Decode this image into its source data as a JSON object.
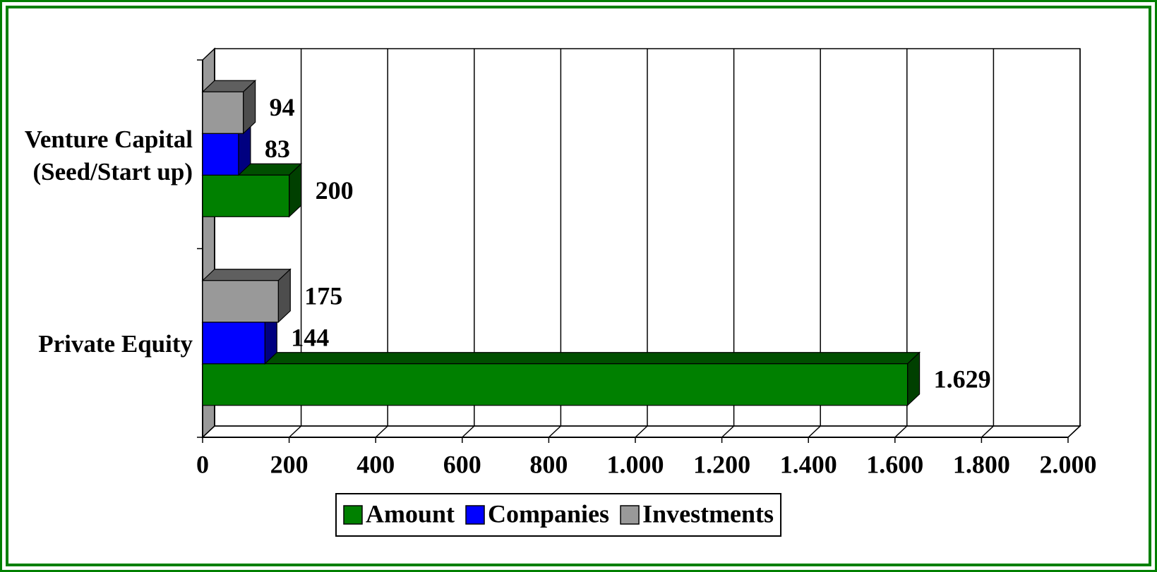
{
  "chart_data": {
    "type": "bar3d_horizontal",
    "categories": [
      "Venture Capital (Seed/Start up)",
      "Private Equity"
    ],
    "series": [
      {
        "name": "Amount",
        "color": "#008000",
        "values": [
          200,
          1629
        ],
        "value_labels": [
          "200",
          "1.629"
        ]
      },
      {
        "name": "Companies",
        "color": "#0000ff",
        "values": [
          83,
          144
        ]
      },
      {
        "name": "Investments",
        "color": "#999999",
        "values": [
          94,
          175
        ]
      }
    ],
    "xlim": [
      0,
      2000
    ],
    "xticks": [
      0,
      200,
      400,
      600,
      800,
      {
        "value": 1000,
        "label": "1.000"
      },
      {
        "value": 1200,
        "label": "1.200"
      },
      {
        "value": 1400,
        "label": "1.400"
      },
      {
        "value": 1600,
        "label": "1.600"
      },
      {
        "value": 1800,
        "label": "1.800"
      },
      {
        "value": 2000,
        "label": "2.000"
      }
    ],
    "grid": true,
    "legend": "bottom"
  }
}
